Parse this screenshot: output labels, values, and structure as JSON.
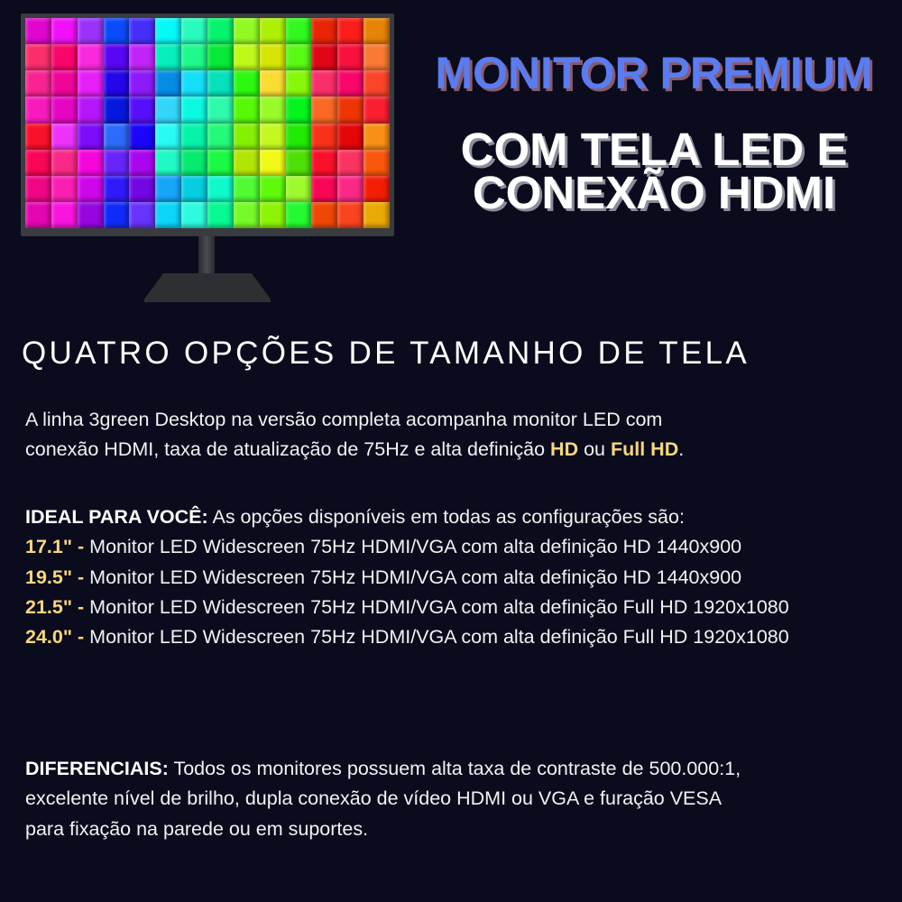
{
  "title": {
    "line1": "MONITOR PREMIUM",
    "line2": "COM TELA LED E",
    "line3": "CONEXÃO HDMI"
  },
  "colors": {
    "background": "#0a0b1d",
    "title_blue": "#5a7cf2",
    "highlight_yellow": "#f7d77a"
  },
  "product_image": "monitor-icon",
  "section_heading": "QUATRO OPÇÕES DE TAMANHO DE TELA",
  "intro": {
    "text1": "A linha 3green Desktop na versão completa acompanha monitor LED com",
    "text2": "conexão HDMI, taxa de atualização de 75Hz e alta definição ",
    "hd": "HD",
    "or": " ou ",
    "fullhd": "Full HD",
    "end": "."
  },
  "ideal": {
    "label": "IDEAL PARA VOCÊ:",
    "text": " As opções disponíveis em todas as configurações são:"
  },
  "options": [
    {
      "size": "17.1\" - ",
      "desc": "Monitor LED Widescreen 75Hz HDMI/VGA com alta definição HD 1440x900"
    },
    {
      "size": "19.5\" - ",
      "desc": "Monitor LED Widescreen 75Hz HDMI/VGA com alta definição HD 1440x900"
    },
    {
      "size": "21.5\" - ",
      "desc": "Monitor LED Widescreen 75Hz HDMI/VGA com alta definição Full HD 1920x1080"
    },
    {
      "size": "24.0\" - ",
      "desc": "Monitor LED Widescreen 75Hz HDMI/VGA com alta definição Full HD 1920x1080"
    }
  ],
  "diferenciais": {
    "label": "DIFERENCIAIS:",
    "line1": " Todos os monitores  possuem alta taxa de contraste de 500.000:1,",
    "line2": "excelente nível  de  brilho, dupla conexão de vídeo HDMI ou VGA e furação VESA",
    "line3": "para fixação na parede ou em suportes."
  }
}
